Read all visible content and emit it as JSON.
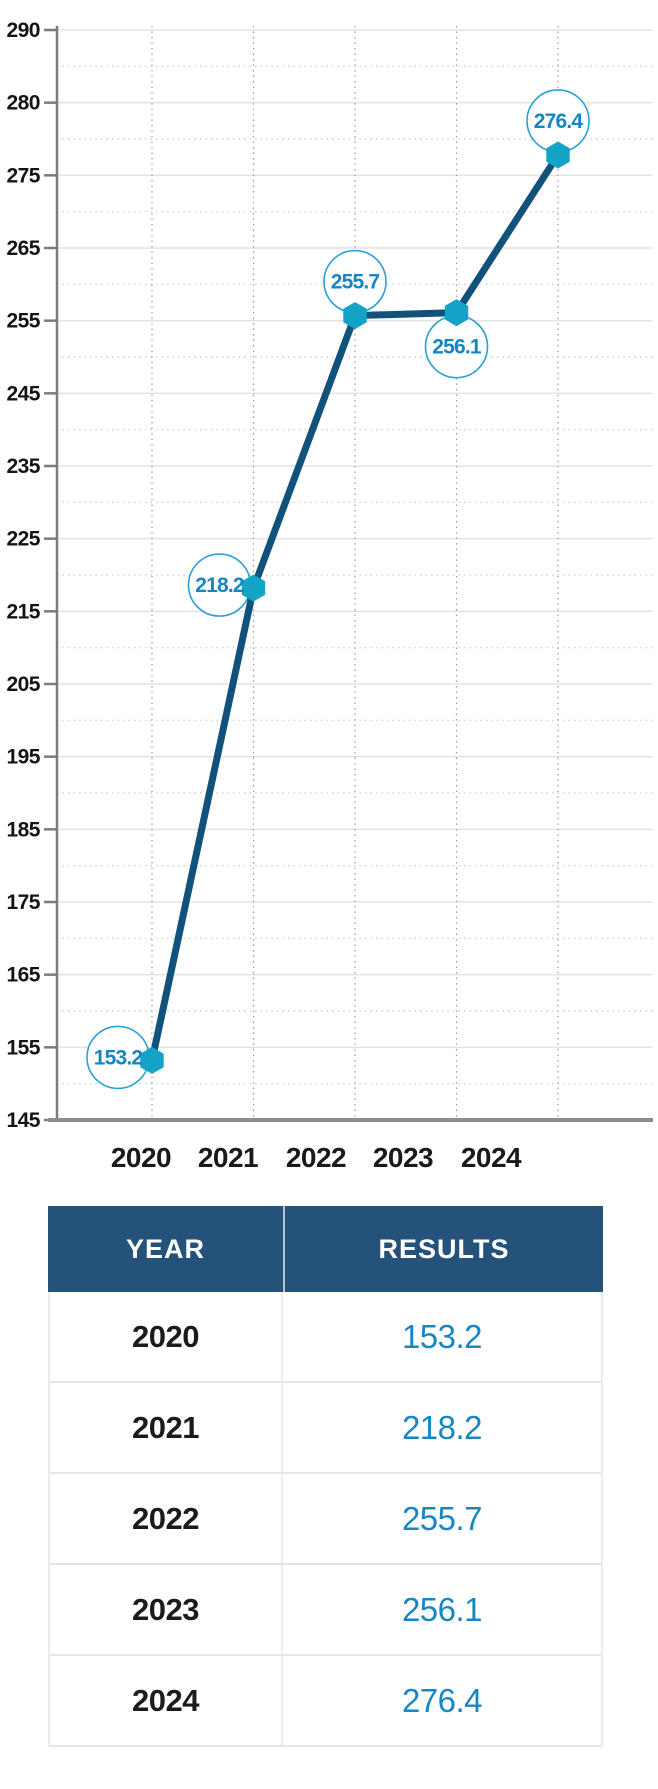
{
  "chart_data": {
    "type": "line",
    "title": "",
    "x": [
      "2020",
      "2021",
      "2022",
      "2023",
      "2024"
    ],
    "series": [
      {
        "name": "RESULTS",
        "values": [
          153.2,
          218.2,
          255.7,
          256.1,
          276.4
        ]
      }
    ],
    "point_labels": [
      "153.2",
      "218.2",
      "255.7",
      "256.1",
      "276.4"
    ],
    "point_label_positions": [
      "left",
      "left",
      "above",
      "below",
      "above"
    ],
    "y_tick_labels": [
      290,
      280,
      275,
      265,
      255,
      245,
      235,
      225,
      215,
      205,
      195,
      185,
      175,
      165,
      155,
      145
    ],
    "x_tick_labels": [
      "2020",
      "2021",
      "2022",
      "2023",
      "2024"
    ],
    "ylim": [
      145,
      290
    ],
    "legend": "none",
    "grid": {
      "horizontal_major": "solid",
      "horizontal_minor": "dotted",
      "vertical": "dotted"
    },
    "colors": {
      "line": "#10527C",
      "marker": "#12A3C6",
      "point_label_text": "#1486C3",
      "point_label_circle": "#2E9FD8",
      "axis": "#7C7C7C",
      "axis_bottom": "#8E8E8E",
      "tick_text": "#141414",
      "grid_major": "#E3E3E3",
      "grid_minor": "#C9C9C9",
      "grid_vertical": "#9E9E9E"
    }
  },
  "table": {
    "headers": [
      "YEAR",
      "RESULTS"
    ],
    "rows": [
      {
        "year": "2020",
        "result": "153.2"
      },
      {
        "year": "2021",
        "result": "218.2"
      },
      {
        "year": "2022",
        "result": "255.7"
      },
      {
        "year": "2023",
        "result": "256.1"
      },
      {
        "year": "2024",
        "result": "276.4"
      }
    ],
    "header_bg": "#25527B",
    "header_text_color": "#FFFFFF",
    "year_text_color": "#1B1B1B",
    "result_text_color": "#1787C3"
  }
}
